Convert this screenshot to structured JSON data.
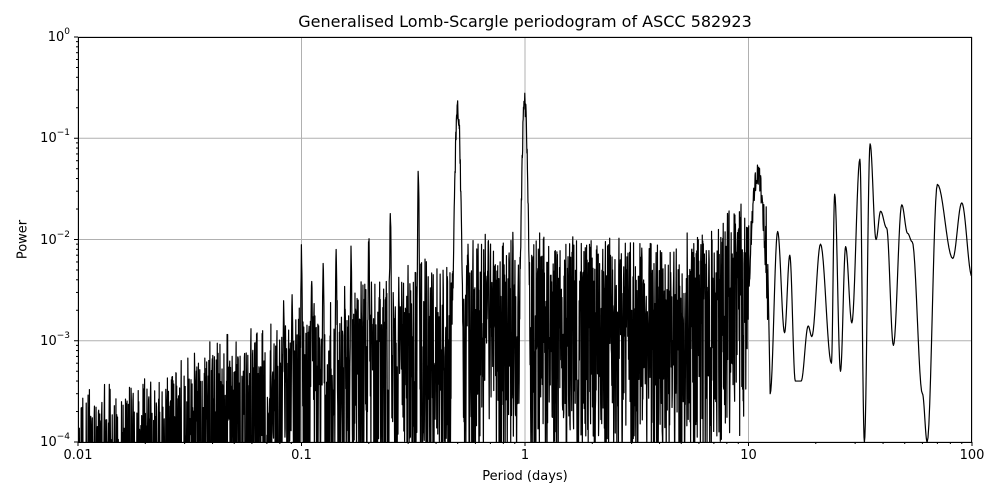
{
  "chart_data": {
    "type": "line",
    "title": "Generalised Lomb-Scargle periodogram of ASCC 582923",
    "xlabel": "Period (days)",
    "ylabel": "Power",
    "xscale": "log",
    "yscale": "log",
    "xlim": [
      0.01,
      100
    ],
    "ylim": [
      0.0001,
      1
    ],
    "grid": true,
    "legend": null,
    "line_color": "#000000",
    "grid_color": "#b0b0b0",
    "xticks": [
      {
        "value": 0.01,
        "label": "0.01"
      },
      {
        "value": 0.1,
        "label": "0.1"
      },
      {
        "value": 1,
        "label": "1"
      },
      {
        "value": 10,
        "label": "10"
      },
      {
        "value": 100,
        "label": "100"
      }
    ],
    "yticks": [
      {
        "value": 1,
        "base": "10",
        "exp": "0"
      },
      {
        "value": 0.1,
        "base": "10",
        "exp": "−1"
      },
      {
        "value": 0.01,
        "base": "10",
        "exp": "−2"
      },
      {
        "value": 0.001,
        "base": "10",
        "exp": "−3"
      },
      {
        "value": 0.0001,
        "base": "10",
        "exp": "−4"
      }
    ],
    "noise_envelope": [
      {
        "period": 0.01,
        "power": 0.00025
      },
      {
        "period": 0.02,
        "power": 0.0003
      },
      {
        "period": 0.04,
        "power": 0.0007
      },
      {
        "period": 0.1,
        "power": 0.0015
      },
      {
        "period": 0.2,
        "power": 0.003
      },
      {
        "period": 0.4,
        "power": 0.005
      },
      {
        "period": 0.7,
        "power": 0.008
      },
      {
        "period": 1.5,
        "power": 0.008
      },
      {
        "period": 3,
        "power": 0.007
      },
      {
        "period": 6,
        "power": 0.009
      },
      {
        "period": 10,
        "power": 0.02
      }
    ],
    "alias_peaks": [
      {
        "period": 0.0833,
        "power": 0.0028
      },
      {
        "period": 0.0909,
        "power": 0.0035
      },
      {
        "period": 0.1,
        "power": 0.01
      },
      {
        "period": 0.111,
        "power": 0.0055
      },
      {
        "period": 0.125,
        "power": 0.007
      },
      {
        "period": 0.1429,
        "power": 0.011
      },
      {
        "period": 0.1667,
        "power": 0.009
      },
      {
        "period": 0.2,
        "power": 0.013
      },
      {
        "period": 0.25,
        "power": 0.024
      },
      {
        "period": 0.3333,
        "power": 0.065
      },
      {
        "period": 0.5,
        "power": 0.26
      },
      {
        "period": 0.997,
        "power": 0.29
      },
      {
        "period": 11.0,
        "power": 0.057
      }
    ],
    "long_period_curve": [
      {
        "period": 12.5,
        "power": 0.0003
      },
      {
        "period": 13.5,
        "power": 0.012
      },
      {
        "period": 14.5,
        "power": 0.0012
      },
      {
        "period": 15.3,
        "power": 0.007
      },
      {
        "period": 16.2,
        "power": 0.0004
      },
      {
        "period": 17.2,
        "power": 0.0004
      },
      {
        "period": 18.5,
        "power": 0.0014
      },
      {
        "period": 19.2,
        "power": 0.0011
      },
      {
        "period": 21.0,
        "power": 0.009
      },
      {
        "period": 23.5,
        "power": 0.0006
      },
      {
        "period": 24.3,
        "power": 0.028
      },
      {
        "period": 25.8,
        "power": 0.0005
      },
      {
        "period": 27.2,
        "power": 0.0085
      },
      {
        "period": 29.0,
        "power": 0.0015
      },
      {
        "period": 31.5,
        "power": 0.062
      },
      {
        "period": 33.0,
        "power": 0.0001
      },
      {
        "period": 35.0,
        "power": 0.088
      },
      {
        "period": 37.2,
        "power": 0.01
      },
      {
        "period": 39.0,
        "power": 0.019
      },
      {
        "period": 41.5,
        "power": 0.013
      },
      {
        "period": 44.5,
        "power": 0.0009
      },
      {
        "period": 48.5,
        "power": 0.022
      },
      {
        "period": 51.5,
        "power": 0.0115
      },
      {
        "period": 54.0,
        "power": 0.0095
      },
      {
        "period": 60.0,
        "power": 0.0003
      },
      {
        "period": 63.0,
        "power": 0.0001
      },
      {
        "period": 70.0,
        "power": 0.035
      },
      {
        "period": 82.0,
        "power": 0.0065
      },
      {
        "period": 90.0,
        "power": 0.023
      },
      {
        "period": 100.0,
        "power": 0.0043
      }
    ]
  }
}
